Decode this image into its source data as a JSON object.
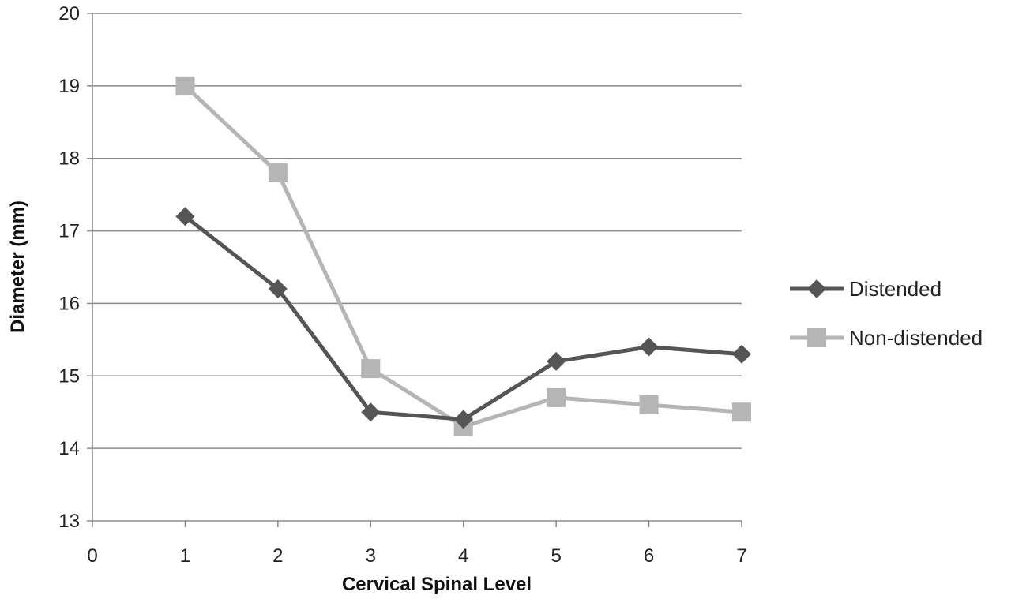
{
  "chart_data": {
    "type": "line",
    "title": "",
    "xlabel": "Cervical Spinal Level",
    "ylabel": "Diameter (mm)",
    "xlim": [
      0,
      7
    ],
    "ylim": [
      13,
      20
    ],
    "x_ticks": [
      0,
      1,
      2,
      3,
      4,
      5,
      6,
      7
    ],
    "y_ticks": [
      13,
      14,
      15,
      16,
      17,
      18,
      19,
      20
    ],
    "grid": "horizontal",
    "legend_position": "right",
    "x": [
      1,
      2,
      3,
      4,
      5,
      6,
      7
    ],
    "series": [
      {
        "name": "Distended",
        "marker": "diamond",
        "color": "#555555",
        "values": [
          17.2,
          16.2,
          14.5,
          14.4,
          15.2,
          15.4,
          15.3
        ]
      },
      {
        "name": "Non-distended",
        "marker": "square",
        "color": "#b5b5b5",
        "values": [
          19.0,
          17.8,
          15.1,
          14.3,
          14.7,
          14.6,
          14.5
        ]
      }
    ]
  }
}
